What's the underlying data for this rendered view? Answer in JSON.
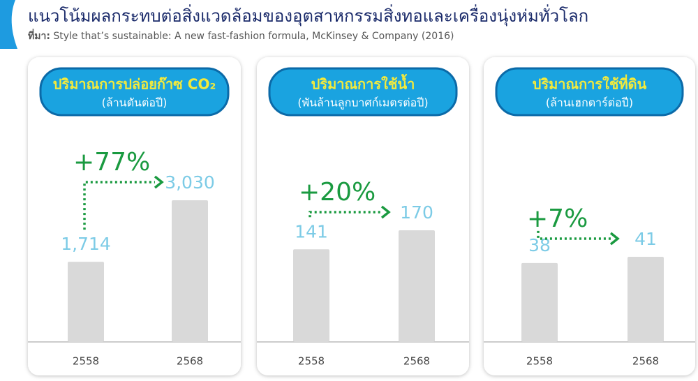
{
  "title": "แนวโน้มผลกระทบต่อสิ่งแวดล้อมของอุตสาหกรรมสิ่งทอและเครื่องนุ่งห่มทั่วโลก",
  "source_label": "ที่มา:",
  "source": "Style that’s sustainable: A new fast-fashion formula, McKinsey & Company (2016)",
  "chart_data": [
    {
      "type": "bar",
      "title": "ปริมาณการปล่อยก๊าซ CO₂",
      "subtitle": "(ล้านตันต่อปี)",
      "categories": [
        "2558",
        "2568"
      ],
      "values": [
        1714,
        3030
      ],
      "value_labels": [
        "1,714",
        "3,030"
      ],
      "annotation": "+77%",
      "color": "#d9d9d9"
    },
    {
      "type": "bar",
      "title": "ปริมาณการใช้น้ำ",
      "subtitle": "(พันล้านลูกบาศก์เมตรต่อปี)",
      "categories": [
        "2558",
        "2568"
      ],
      "values": [
        141,
        170
      ],
      "annotation": "+20%",
      "color": "#d9d9d9"
    },
    {
      "type": "bar",
      "title": "ปริมาณการใช้ที่ดิน",
      "subtitle": "(ล้านเฮกตาร์ต่อปี)",
      "categories": [
        "2558",
        "2568"
      ],
      "values": [
        38,
        41
      ],
      "annotation": "+7%",
      "color": "#d9d9d9"
    }
  ]
}
